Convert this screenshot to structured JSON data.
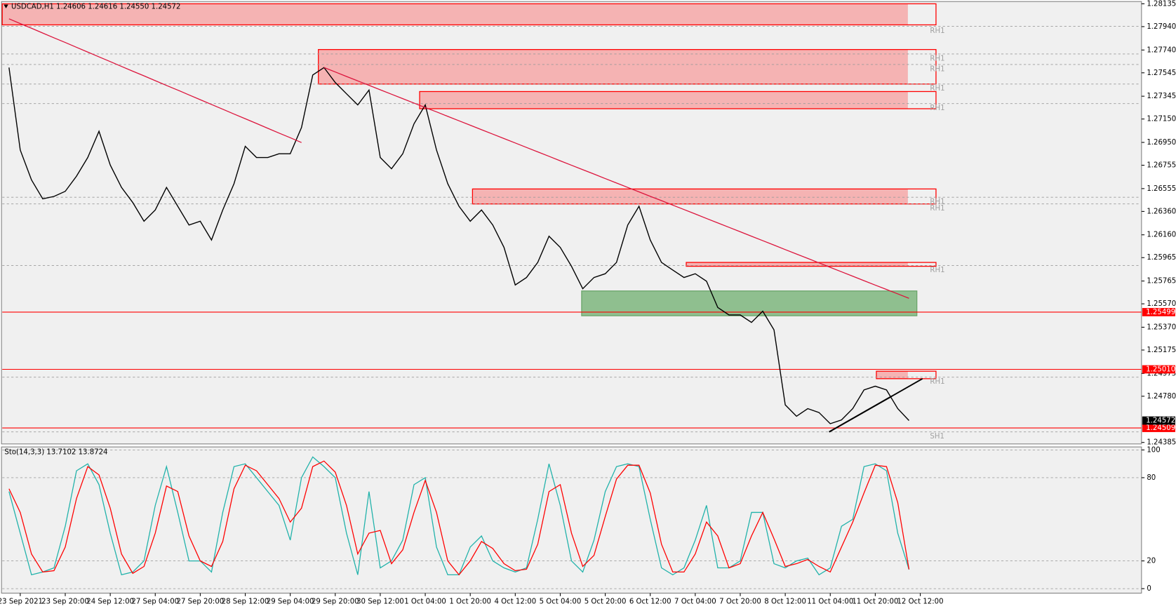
{
  "chart_data": [
    {
      "type": "line",
      "title": "USDCAD,H1  1.24606 1.24616 1.24550 1.24572",
      "categories": [
        null,
        "23 Sep 2021",
        null,
        null,
        null,
        "23 Sep 20:00",
        null,
        null,
        null,
        "24 Sep 12:00",
        null,
        null,
        null,
        "27 Sep 04:00",
        null,
        null,
        null,
        "27 Sep 20:00",
        null,
        null,
        null,
        "28 Sep 12:00",
        null,
        null,
        null,
        "29 Sep 04:00",
        null,
        null,
        null,
        "29 Sep 20:00",
        null,
        null,
        null,
        "30 Sep 12:00",
        null,
        null,
        null,
        "1 Oct 04:00",
        null,
        null,
        null,
        "1 Oct 20:00",
        null,
        null,
        null,
        "4 Oct 12:00",
        null,
        null,
        null,
        "5 Oct 04:00",
        null,
        null,
        null,
        "5 Oct 20:00",
        null,
        null,
        null,
        "6 Oct 12:00",
        null,
        null,
        null,
        "7 Oct 04:00",
        null,
        null,
        null,
        "7 Oct 20:00",
        null,
        null,
        null,
        "8 Oct 12:00",
        null,
        null,
        null,
        "11 Oct 04:00",
        null,
        null,
        null,
        "11 Oct 20:00",
        null,
        null,
        null,
        "12 Oct 12:00"
      ],
      "series": [
        {
          "color": "#000000",
          "values": [
            1.2759,
            1.26885,
            1.26629,
            1.26468,
            1.26488,
            1.26532,
            1.26661,
            1.26821,
            1.27045,
            1.26757,
            1.26565,
            1.26436,
            1.26276,
            1.26372,
            1.26565,
            1.26404,
            1.26244,
            1.26276,
            1.26116,
            1.26372,
            1.26597,
            1.26917,
            1.26821,
            1.26821,
            1.26853,
            1.26853,
            1.27077,
            1.27526,
            1.2759,
            1.27462,
            1.27366,
            1.2727,
            1.27398,
            1.26821,
            1.26725,
            1.26853,
            1.27109,
            1.2727,
            1.26885,
            1.26597,
            1.26404,
            1.26276,
            1.26372,
            1.26244,
            1.26052,
            1.25731,
            1.25795,
            1.25924,
            1.26148,
            1.26052,
            1.25891,
            1.25699,
            1.25795,
            1.25827,
            1.25924,
            1.26244,
            1.26404,
            1.26116,
            1.25924,
            1.25859,
            1.25795,
            1.25827,
            1.25763,
            1.25539,
            1.25475,
            1.25475,
            1.25411,
            1.25507,
            1.25347,
            1.24706,
            1.24609,
            1.24674,
            1.24641,
            1.24545,
            1.24577,
            1.24674,
            1.24834,
            1.24866,
            1.24834,
            1.24674,
            1.24572,
            null
          ]
        },
        {
          "color": "#dc143c",
          "values": [
            1.28007,
            1.27966,
            1.27926,
            1.27885,
            1.27844,
            1.27804,
            1.27763,
            1.27722,
            1.27681,
            1.27641,
            1.276,
            1.27559,
            1.27519,
            1.27478,
            1.27437,
            1.27397,
            1.27356,
            1.27315,
            1.27274,
            1.27234,
            1.27193,
            1.27152,
            1.27112,
            1.27071,
            1.2703,
            1.2699,
            1.26949,
            null,
            1.2759,
            1.27552,
            1.27514,
            1.27476,
            1.27438,
            1.274,
            1.27362,
            1.27324,
            1.27286,
            1.27248,
            1.27211,
            1.27173,
            1.27135,
            1.27097,
            1.27059,
            1.27021,
            1.26983,
            1.26945,
            1.26907,
            1.26869,
            1.26831,
            1.26793,
            1.26755,
            1.26717,
            1.26679,
            1.26641,
            1.26603,
            1.26565,
            1.26527,
            1.26489,
            1.26452,
            1.26414,
            1.26376,
            1.26338,
            1.263,
            1.26262,
            1.26224,
            1.26186,
            1.26148,
            1.2611,
            1.26072,
            1.26034,
            1.25996,
            1.25958,
            1.2592,
            1.25882,
            1.25844,
            1.25806,
            1.25768,
            1.2573,
            1.25693,
            1.25655,
            1.25617,
            null
          ]
        }
      ],
      "ylim": [
        1.24385,
        1.28135
      ],
      "yticks": [
        1.28135,
        {
          "value": 1.2794,
          "label": "1.27940"
        },
        {
          "value": 1.2774,
          "label": "1.27740"
        },
        1.27545,
        1.27345,
        {
          "value": 1.2715,
          "label": "1.27150"
        },
        {
          "value": 1.2695,
          "label": "1.26950"
        },
        1.26755,
        1.26555,
        {
          "value": 1.2636,
          "label": "1.26360"
        },
        {
          "value": 1.2616,
          "label": "1.26160"
        },
        1.25965,
        1.25765,
        {
          "value": 1.2557,
          "label": "1.25570"
        },
        {
          "value": 1.2537,
          "label": "1.25370"
        },
        1.25175,
        1.24975,
        {
          "value": 1.2478,
          "label": "1.24780"
        },
        1.24385
      ],
      "grid": false,
      "zones": [
        {
          "x": [
            -0.8,
            79.9
          ],
          "y": [
            1.27955,
            1.28135
          ],
          "color": "#f5b3b3",
          "stroke": "#ff0000"
        },
        {
          "x": [
            27.5,
            79.9
          ],
          "y": [
            1.27449,
            1.27744
          ],
          "color": "#f5b3b3",
          "stroke": "#ff0000"
        },
        {
          "x": [
            36.5,
            79.9
          ],
          "y": [
            1.27238,
            1.27385
          ],
          "color": "#f5b3b3",
          "stroke": "#ff0000"
        },
        {
          "x": [
            41.2,
            79.9
          ],
          "y": [
            1.26424,
            1.26552
          ],
          "color": "#f5b3b3",
          "stroke": "#ff0000"
        },
        {
          "x": [
            60.2,
            79.9
          ],
          "y": [
            1.25891,
            1.25924
          ],
          "color": "#f5b3b3",
          "stroke": "#ff0000"
        },
        {
          "x": [
            77.1,
            79.9
          ],
          "y": [
            1.2493,
            1.24994
          ],
          "color": "#f5b3b3",
          "stroke": "#ff0000"
        },
        {
          "x": [
            50.9,
            80.7
          ],
          "y": [
            1.25468,
            1.2568
          ],
          "color": "#8fbf8f",
          "stroke": "#6aa56a"
        }
      ],
      "levels": [
        {
          "value": 1.27943,
          "text": "RH1"
        },
        {
          "value": 1.27706,
          "text": "RH1"
        },
        {
          "value": 1.27616,
          "text": "RH1"
        },
        {
          "value": 1.27449,
          "text": "RH1"
        },
        {
          "value": 1.27282,
          "text": "RH1"
        },
        {
          "value": 1.26481,
          "text": "RH1"
        },
        {
          "value": 1.26424,
          "text": "RH1"
        },
        {
          "value": 1.25897,
          "text": "RH1"
        },
        {
          "value": 1.24943,
          "text": "RH1"
        },
        {
          "value": 1.24475,
          "text": "SH1"
        }
      ],
      "hlines": [
        {
          "value": 1.25499,
          "color": "#ff0000"
        },
        {
          "value": 1.2501,
          "label": "1.25010",
          "color": "#ff0000"
        },
        {
          "value": 1.24509,
          "color": "#ff0000"
        }
      ],
      "current_price": 1.24572,
      "trendlines": [
        {
          "x": [
            72.9,
            81.2
          ],
          "y": [
            1.24475,
            1.2493
          ]
        },
        {
          "x": [
            72.9,
            78.5
          ],
          "y": [
            1.24475,
            1.24782
          ]
        }
      ]
    },
    {
      "type": "line",
      "title": "Sto(14,3,3) 13.7102 13.8724",
      "series": [
        {
          "color": "#20b2aa",
          "values": [
            70,
            40,
            10,
            12,
            15,
            45,
            85,
            90,
            75,
            40,
            10,
            12,
            20,
            60,
            88,
            55,
            20,
            20,
            12,
            55,
            88,
            90,
            80,
            70,
            60,
            35,
            80,
            95,
            88,
            80,
            40,
            10,
            70,
            15,
            20,
            35,
            75,
            80,
            30,
            10,
            10,
            30,
            38,
            20,
            15,
            12,
            15,
            50,
            90,
            60,
            20,
            12,
            35,
            70,
            88,
            90,
            88,
            50,
            15,
            10,
            15,
            35,
            60,
            15,
            15,
            20,
            55,
            55,
            18,
            15,
            20,
            22,
            10,
            15,
            45,
            50,
            88,
            90,
            85,
            40,
            13.7102,
            null
          ]
        },
        {
          "color": "#ff0000",
          "values": [
            72,
            55,
            25,
            12,
            13,
            30,
            65,
            88,
            82,
            58,
            25,
            11,
            16,
            40,
            74,
            70,
            38,
            20,
            16,
            34,
            72,
            89,
            85,
            75,
            65,
            48,
            58,
            88,
            92,
            84,
            60,
            25,
            40,
            42,
            18,
            28,
            55,
            78,
            55,
            20,
            10,
            20,
            34,
            29,
            18,
            13,
            14,
            32,
            70,
            75,
            40,
            16,
            24,
            52,
            79,
            89,
            89,
            69,
            32,
            12,
            12,
            25,
            48,
            38,
            15,
            18,
            38,
            55,
            36,
            16,
            18,
            21,
            16,
            12,
            30,
            48,
            69,
            89,
            88,
            62,
            13.8724,
            null
          ]
        }
      ],
      "ylim": [
        0,
        100
      ],
      "yticks": [
        0,
        20,
        80,
        100
      ],
      "grid": true
    }
  ]
}
